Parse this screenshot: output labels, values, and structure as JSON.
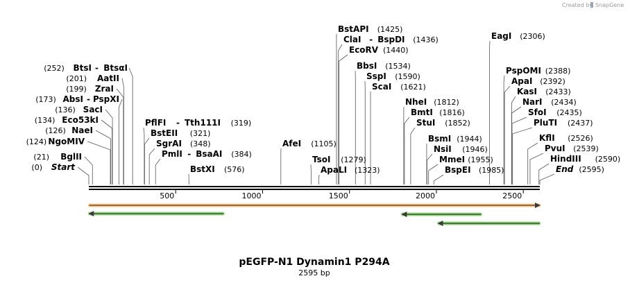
{
  "credit": {
    "prefix": "Created by",
    "brand": "SnapGene"
  },
  "title": "pEGFP-N1 Dynamin1 P294A",
  "subtitle": "2595 bp",
  "sequence_length": 2595,
  "axis_ticks": [
    500,
    1000,
    1500,
    2000,
    2500
  ],
  "colors": {
    "backbone": "#000000",
    "orange_feature": "#f6a24a",
    "orange_glow": "#fde4c4",
    "green_feature": "#5fb54a",
    "green_glow": "#c8eebb",
    "arrow_line": "#3a3a3a"
  },
  "features": [
    {
      "kind": "orange",
      "start": 1,
      "end": 2595,
      "direction": "forward"
    },
    {
      "kind": "green",
      "start": 1,
      "end": 776,
      "direction": "reverse"
    },
    {
      "kind": "green",
      "start": 1802,
      "end": 2258,
      "direction": "reverse"
    },
    {
      "kind": "green",
      "start": 2010,
      "end": 2595,
      "direction": "reverse"
    }
  ],
  "left_sites": [
    {
      "pos": 252,
      "pos_label": "(252)",
      "name": "BtsI",
      "alt": "BtsαI"
    },
    {
      "pos": 201,
      "pos_label": "(201)",
      "name": "AatII"
    },
    {
      "pos": 199,
      "pos_label": "(199)",
      "name": "ZraI"
    },
    {
      "pos": 173,
      "pos_label": "(173)",
      "name": "AbsI",
      "alt": "PspXI"
    },
    {
      "pos": 136,
      "pos_label": "(136)",
      "name": "SacI"
    },
    {
      "pos": 134,
      "pos_label": "(134)",
      "name": "Eco53kI"
    },
    {
      "pos": 126,
      "pos_label": "(126)",
      "name": "NaeI"
    },
    {
      "pos": 124,
      "pos_label": "(124)",
      "name": "NgoMIV"
    },
    {
      "pos": 21,
      "pos_label": "(21)",
      "name": "BglII"
    },
    {
      "pos": 0,
      "pos_label": "(0)",
      "name": "Start",
      "is_end": true
    }
  ],
  "right_sites": [
    {
      "pos": 319,
      "pos_label": "(319)",
      "name": "PflFI",
      "alt": "Tth111I"
    },
    {
      "pos": 321,
      "pos_label": "(321)",
      "name": "BstEII"
    },
    {
      "pos": 348,
      "pos_label": "(348)",
      "name": "SgrAI"
    },
    {
      "pos": 384,
      "pos_label": "(384)",
      "name": "PmlI",
      "alt": "BsaAI"
    },
    {
      "pos": 576,
      "pos_label": "(576)",
      "name": "BstXI"
    },
    {
      "pos": 1105,
      "pos_label": "(1105)",
      "name": "AfeI"
    },
    {
      "pos": 1279,
      "pos_label": "(1279)",
      "name": "TsoI"
    },
    {
      "pos": 1323,
      "pos_label": "(1323)",
      "name": "ApaLI"
    },
    {
      "pos": 1425,
      "pos_label": "(1425)",
      "name": "BstAPI"
    },
    {
      "pos": 1436,
      "pos_label": "(1436)",
      "name": "ClaI",
      "alt": "BspDI"
    },
    {
      "pos": 1440,
      "pos_label": "(1440)",
      "name": "EcoRV"
    },
    {
      "pos": 1534,
      "pos_label": "(1534)",
      "name": "BbsI"
    },
    {
      "pos": 1590,
      "pos_label": "(1590)",
      "name": "SspI"
    },
    {
      "pos": 1621,
      "pos_label": "(1621)",
      "name": "ScaI"
    },
    {
      "pos": 1812,
      "pos_label": "(1812)",
      "name": "NheI"
    },
    {
      "pos": 1816,
      "pos_label": "(1816)",
      "name": "BmtI"
    },
    {
      "pos": 1852,
      "pos_label": "(1852)",
      "name": "StuI"
    },
    {
      "pos": 1944,
      "pos_label": "(1944)",
      "name": "BsmI"
    },
    {
      "pos": 1946,
      "pos_label": "(1946)",
      "name": "NsiI"
    },
    {
      "pos": 1955,
      "pos_label": "(1955)",
      "name": "MmeI"
    },
    {
      "pos": 1985,
      "pos_label": "(1985)",
      "name": "BspEI"
    },
    {
      "pos": 2306,
      "pos_label": "(2306)",
      "name": "EagI"
    },
    {
      "pos": 2388,
      "pos_label": "(2388)",
      "name": "PspOMI"
    },
    {
      "pos": 2392,
      "pos_label": "(2392)",
      "name": "ApaI"
    },
    {
      "pos": 2433,
      "pos_label": "(2433)",
      "name": "KasI"
    },
    {
      "pos": 2434,
      "pos_label": "(2434)",
      "name": "NarI"
    },
    {
      "pos": 2435,
      "pos_label": "(2435)",
      "name": "SfoI"
    },
    {
      "pos": 2437,
      "pos_label": "(2437)",
      "name": "PluTI"
    },
    {
      "pos": 2526,
      "pos_label": "(2526)",
      "name": "KflI"
    },
    {
      "pos": 2539,
      "pos_label": "(2539)",
      "name": "PvuI"
    },
    {
      "pos": 2590,
      "pos_label": "(2590)",
      "name": "HindIII"
    },
    {
      "pos": 2595,
      "pos_label": "(2595)",
      "name": "End",
      "is_end": true
    }
  ]
}
